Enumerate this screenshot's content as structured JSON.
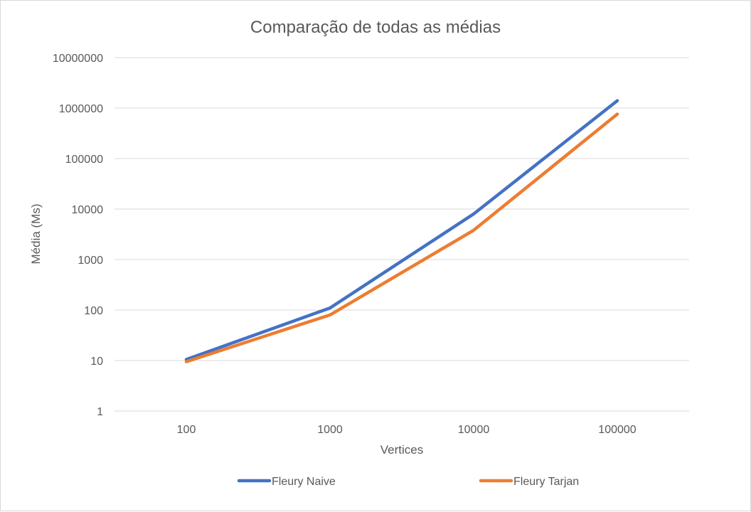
{
  "chart_data": {
    "type": "line",
    "title": "Comparação de todas as médias",
    "xlabel": "Vertices",
    "ylabel": "Média (Ms)",
    "categories": [
      "100",
      "1000",
      "10000",
      "100000"
    ],
    "y_scale": "log10",
    "ylim": [
      1,
      10000000
    ],
    "y_ticks": [
      "1",
      "10",
      "100",
      "1000",
      "10000",
      "100000",
      "1000000",
      "10000000"
    ],
    "grid": true,
    "legend_position": "bottom",
    "series": [
      {
        "name": "Fleury Naive",
        "color": "#4472C4",
        "values": [
          10.5,
          110,
          8000,
          1400000
        ]
      },
      {
        "name": "Fleury Tarjan",
        "color": "#ED7D31",
        "values": [
          9.5,
          80,
          3800,
          760000
        ]
      }
    ]
  }
}
